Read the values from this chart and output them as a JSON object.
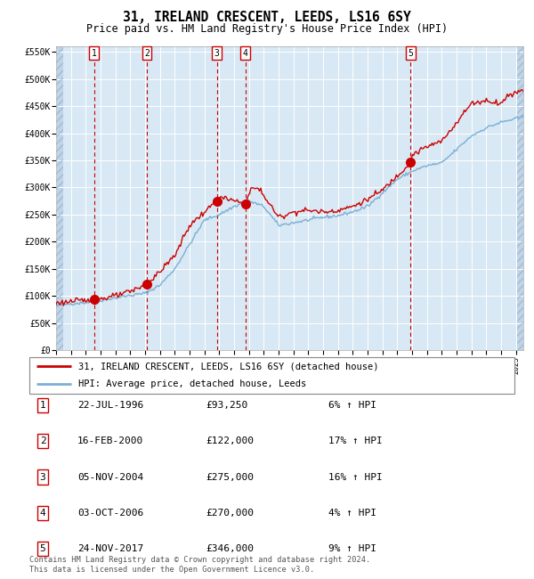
{
  "title": "31, IRELAND CRESCENT, LEEDS, LS16 6SY",
  "subtitle": "Price paid vs. HM Land Registry's House Price Index (HPI)",
  "title_fontsize": 10.5,
  "subtitle_fontsize": 8.5,
  "ylim": [
    0,
    560000
  ],
  "yticks": [
    0,
    50000,
    100000,
    150000,
    200000,
    250000,
    300000,
    350000,
    400000,
    450000,
    500000,
    550000
  ],
  "ytick_labels": [
    "£0",
    "£50K",
    "£100K",
    "£150K",
    "£200K",
    "£250K",
    "£300K",
    "£350K",
    "£400K",
    "£450K",
    "£500K",
    "£550K"
  ],
  "plot_bg_color": "#d8e8f4",
  "grid_color": "#ffffff",
  "red_line_color": "#cc0000",
  "blue_line_color": "#7bafd4",
  "sale_marker_color": "#cc0000",
  "dashed_line_color": "#cc0000",
  "sale_dates_x": [
    1996.55,
    2000.12,
    2004.84,
    2006.75,
    2017.9
  ],
  "sale_prices_y": [
    93250,
    122000,
    275000,
    270000,
    346000
  ],
  "sale_labels": [
    "1",
    "2",
    "3",
    "4",
    "5"
  ],
  "legend_label_red": "31, IRELAND CRESCENT, LEEDS, LS16 6SY (detached house)",
  "legend_label_blue": "HPI: Average price, detached house, Leeds",
  "table_rows": [
    [
      "1",
      "22-JUL-1996",
      "£93,250",
      "6% ↑ HPI"
    ],
    [
      "2",
      "16-FEB-2000",
      "£122,000",
      "17% ↑ HPI"
    ],
    [
      "3",
      "05-NOV-2004",
      "£275,000",
      "16% ↑ HPI"
    ],
    [
      "4",
      "03-OCT-2006",
      "£270,000",
      "4% ↑ HPI"
    ],
    [
      "5",
      "24-NOV-2017",
      "£346,000",
      "9% ↑ HPI"
    ]
  ],
  "footer": "Contains HM Land Registry data © Crown copyright and database right 2024.\nThis data is licensed under the Open Government Licence v3.0.",
  "xmin": 1994.0,
  "xmax": 2025.5,
  "hpi_anchors_x": [
    1994,
    1995,
    1996,
    1997,
    1998,
    1999,
    2000,
    2001,
    2002,
    2003,
    2004,
    2005,
    2006,
    2007,
    2008,
    2009,
    2010,
    2011,
    2012,
    2013,
    2014,
    2015,
    2016,
    2017,
    2018,
    2019,
    2020,
    2021,
    2022,
    2023,
    2024,
    2025.5
  ],
  "hpi_anchors_y": [
    82000,
    86000,
    88000,
    92000,
    97000,
    101000,
    105000,
    120000,
    150000,
    195000,
    240000,
    250000,
    265000,
    275000,
    265000,
    230000,
    235000,
    240000,
    245000,
    248000,
    255000,
    265000,
    290000,
    315000,
    330000,
    340000,
    345000,
    370000,
    395000,
    410000,
    420000,
    430000
  ],
  "prop_anchors_x": [
    1994,
    1995,
    1996.55,
    1997,
    1998,
    1999,
    2000.12,
    2001,
    2002,
    2003,
    2004.84,
    2005,
    2006.75,
    2007.2,
    2007.8,
    2008,
    2009,
    2010,
    2011,
    2012,
    2013,
    2014,
    2015,
    2016,
    2017.9,
    2018,
    2019,
    2020,
    2021,
    2022,
    2023,
    2024,
    2024.5,
    2025.5
  ],
  "prop_anchors_y": [
    87000,
    90000,
    93250,
    95000,
    100000,
    108000,
    122000,
    145000,
    175000,
    230000,
    275000,
    282000,
    270000,
    300000,
    295000,
    285000,
    245000,
    255000,
    258000,
    255000,
    258000,
    265000,
    278000,
    295000,
    346000,
    360000,
    375000,
    385000,
    420000,
    455000,
    460000,
    455000,
    470000,
    480000
  ]
}
